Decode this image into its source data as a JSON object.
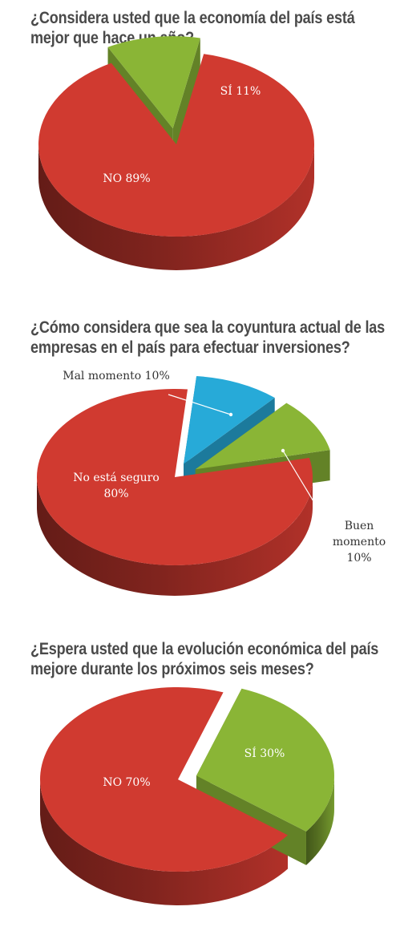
{
  "colors": {
    "red": "#d03a30",
    "red_dark": "#7c1410",
    "green": "#8ab536",
    "green_dark": "#5d8221",
    "blue": "#27aad8",
    "blue_dark": "#1682ad",
    "title": "#4a4a4a",
    "label_light": "#ffffff",
    "label_dark": "#333333"
  },
  "chart_data": [
    {
      "type": "pie",
      "title_lines": [
        "¿Considera usted que la economía del país está",
        "mejor que hace un año?"
      ],
      "slices": [
        {
          "label": "NO 89%",
          "value": 89,
          "color": "red"
        },
        {
          "label": "SÍ 11%",
          "value": 11,
          "color": "green",
          "exploded": true
        }
      ]
    },
    {
      "type": "pie",
      "title_lines": [
        "¿Cómo considera que sea la coyuntura actual de las",
        "empresas en el país para efectuar inversiones?"
      ],
      "slices": [
        {
          "label_lines": [
            "No está seguro",
            "80%"
          ],
          "value": 80,
          "color": "red"
        },
        {
          "label_lines": [
            "Mal momento 10%"
          ],
          "value": 10,
          "color": "blue",
          "exploded": true,
          "callout": true
        },
        {
          "label_lines": [
            "Buen",
            "momento",
            "10%"
          ],
          "value": 10,
          "color": "green",
          "exploded": true,
          "callout": true
        }
      ]
    },
    {
      "type": "pie",
      "title_lines": [
        "¿Espera usted que la evolución económica del país",
        "mejore durante los próximos seis meses?"
      ],
      "slices": [
        {
          "label": "NO 70%",
          "value": 70,
          "color": "red"
        },
        {
          "label": "SÍ 30%",
          "value": 30,
          "color": "green",
          "exploded": true
        }
      ]
    }
  ]
}
